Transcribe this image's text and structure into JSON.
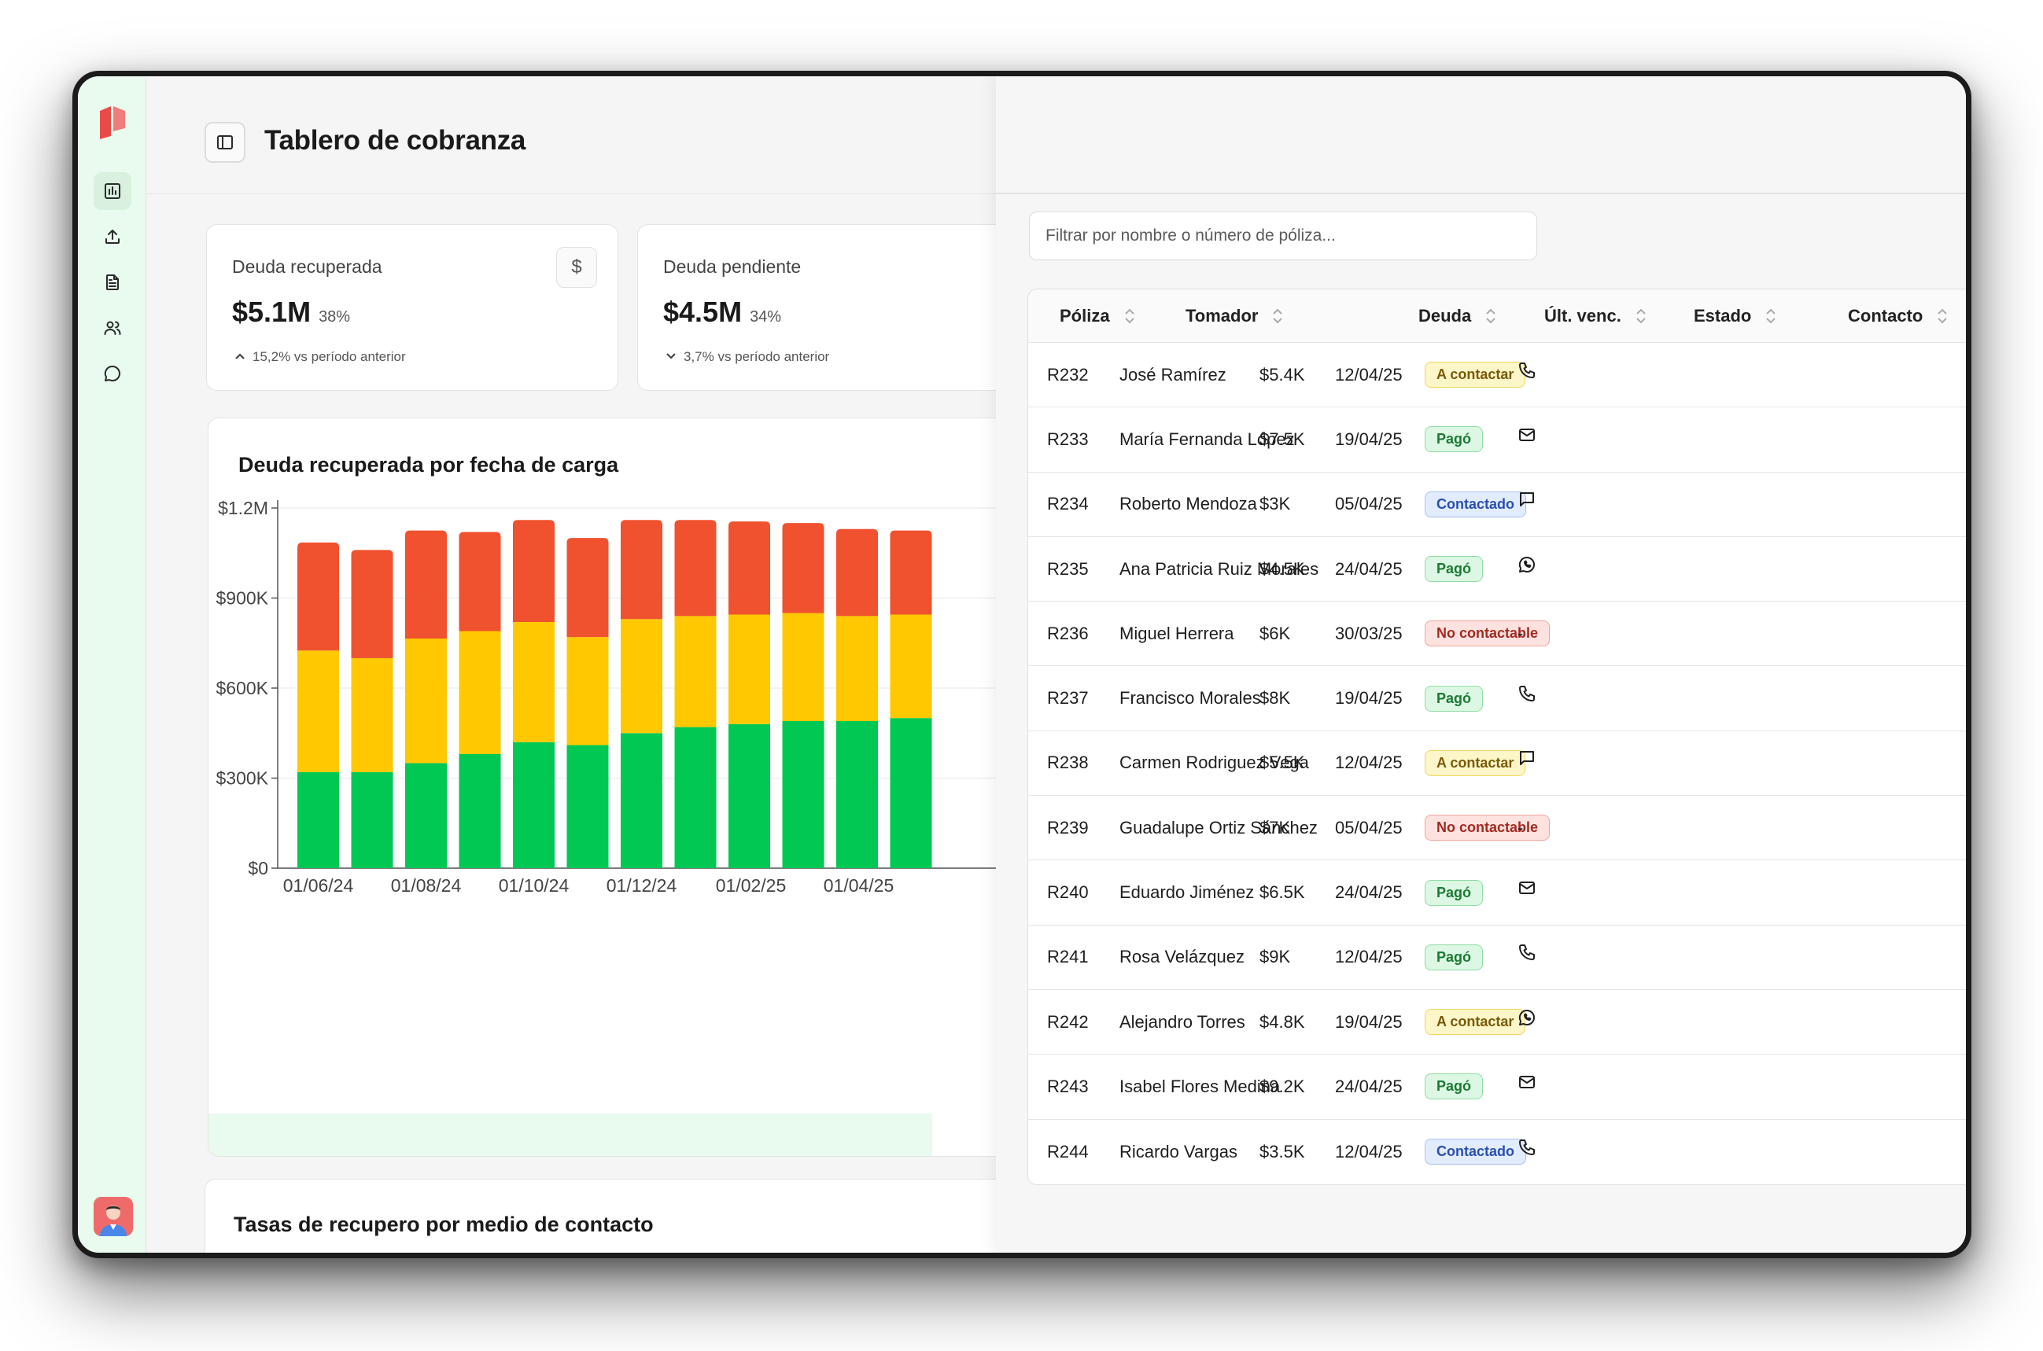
{
  "header": {
    "title": "Tablero de cobranza"
  },
  "sidebar": {
    "items": [
      "chart-icon",
      "upload-icon",
      "document-icon",
      "users-icon",
      "chat-icon"
    ]
  },
  "kpis": [
    {
      "label": "Deuda recuperada",
      "value": "$5.1M",
      "pct": "38%",
      "delta": "15,2% vs período anterior",
      "trend": "up",
      "icon": "$"
    },
    {
      "label": "Deuda pendiente",
      "value": "$4.5M",
      "pct": "34%",
      "delta": "3,7% vs período anterior",
      "trend": "down"
    }
  ],
  "chart_data": {
    "type": "bar",
    "stacked": true,
    "title": "Deuda recuperada por fecha de carga",
    "ylim": [
      0,
      1200000
    ],
    "yticks": [
      "$0",
      "$300K",
      "$600K",
      "$900K",
      "$1.2M"
    ],
    "ytick_values": [
      0,
      300000,
      600000,
      900000,
      1200000
    ],
    "xtick_labels": [
      "01/06/24",
      "01/08/24",
      "01/10/24",
      "01/12/24",
      "01/02/25",
      "01/04/25"
    ],
    "series": [
      {
        "name": "green",
        "color": "#00c853",
        "values": [
          320000,
          320000,
          350000,
          380000,
          420000,
          410000,
          450000,
          470000,
          480000,
          490000,
          490000,
          500000
        ]
      },
      {
        "name": "yellow",
        "color": "#ffc800",
        "values": [
          405000,
          380000,
          415000,
          410000,
          400000,
          360000,
          380000,
          370000,
          365000,
          360000,
          350000,
          345000
        ]
      },
      {
        "name": "red",
        "color": "#f0512e",
        "values": [
          360000,
          360000,
          360000,
          330000,
          340000,
          330000,
          330000,
          320000,
          310000,
          300000,
          290000,
          280000
        ]
      }
    ]
  },
  "section2": {
    "title": "Tasas de recupero por medio de contacto"
  },
  "panel": {
    "filter_placeholder": "Filtrar por nombre o número de póliza...",
    "columns": [
      "Póliza",
      "Tomador",
      "Deuda",
      "Últ. venc.",
      "Estado",
      "Contacto"
    ],
    "rows": [
      {
        "poliza": "R232",
        "tomador": "José Ramírez",
        "deuda": "$5.4K",
        "venc": "12/04/25",
        "estado": "A contactar",
        "contacto": "phone"
      },
      {
        "poliza": "R233",
        "tomador": "María Fernanda López",
        "deuda": "$7.5K",
        "venc": "19/04/25",
        "estado": "Pagó",
        "contacto": "mail"
      },
      {
        "poliza": "R234",
        "tomador": "Roberto Mendoza",
        "deuda": "$3K",
        "venc": "05/04/25",
        "estado": "Contactado",
        "contacto": "sms"
      },
      {
        "poliza": "R235",
        "tomador": "Ana Patricia Ruiz Morales",
        "deuda": "$4.5K",
        "venc": "24/04/25",
        "estado": "Pagó",
        "contacto": "whatsapp"
      },
      {
        "poliza": "R236",
        "tomador": "Miguel Herrera",
        "deuda": "$6K",
        "venc": "30/03/25",
        "estado": "No contactable",
        "contacto": "-"
      },
      {
        "poliza": "R237",
        "tomador": "Francisco Morales",
        "deuda": "$8K",
        "venc": "19/04/25",
        "estado": "Pagó",
        "contacto": "phone"
      },
      {
        "poliza": "R238",
        "tomador": "Carmen Rodriguez Vega",
        "deuda": "$5.5K",
        "venc": "12/04/25",
        "estado": "A contactar",
        "contacto": "sms"
      },
      {
        "poliza": "R239",
        "tomador": "Guadalupe Ortiz Sánchez",
        "deuda": "$7K",
        "venc": "05/04/25",
        "estado": "No contactable",
        "contacto": "-"
      },
      {
        "poliza": "R240",
        "tomador": "Eduardo Jiménez",
        "deuda": "$6.5K",
        "venc": "24/04/25",
        "estado": "Pagó",
        "contacto": "mail"
      },
      {
        "poliza": "R241",
        "tomador": "Rosa Velázquez",
        "deuda": "$9K",
        "venc": "12/04/25",
        "estado": "Pagó",
        "contacto": "phone"
      },
      {
        "poliza": "R242",
        "tomador": "Alejandro Torres",
        "deuda": "$4.8K",
        "venc": "19/04/25",
        "estado": "A contactar",
        "contacto": "whatsapp"
      },
      {
        "poliza": "R243",
        "tomador": "Isabel Flores Medina",
        "deuda": "$9.2K",
        "venc": "24/04/25",
        "estado": "Pagó",
        "contacto": "mail"
      },
      {
        "poliza": "R244",
        "tomador": "Ricardo Vargas",
        "deuda": "$3.5K",
        "venc": "12/04/25",
        "estado": "Contactado",
        "contacto": "phone"
      }
    ]
  }
}
